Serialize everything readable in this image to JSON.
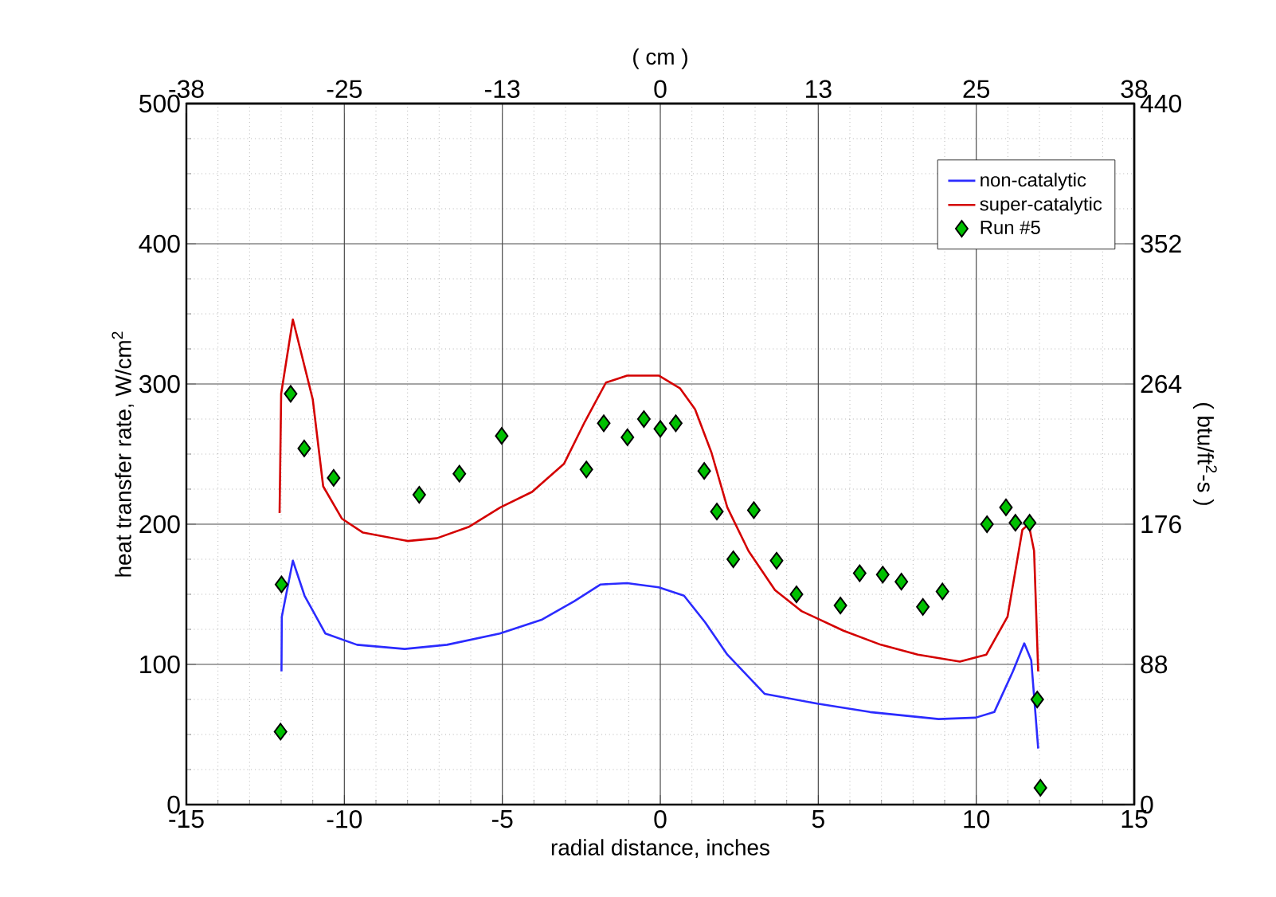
{
  "chart_data": {
    "type": "line",
    "xlabel": "radial distance, inches",
    "ylabel": "heat transfer rate, W/cm$^{2}$",
    "y2label": "( btu/ft$^{2}$-s )",
    "x2label": "( cm )",
    "xlim": [
      -15,
      15
    ],
    "xticks": [
      -15,
      -10,
      -5,
      0,
      5,
      10,
      15
    ],
    "ylim": [
      0,
      500
    ],
    "yticks": [
      0,
      100,
      200,
      300,
      400,
      500
    ],
    "x2lim": [
      -38.1,
      38.1
    ],
    "x2ticks": [
      {
        "value": -38.1,
        "label": "-38"
      },
      {
        "value": -25.4,
        "label": "-25"
      },
      {
        "value": -12.7,
        "label": "-13"
      },
      {
        "value": 0,
        "label": "0"
      },
      {
        "value": 12.7,
        "label": "13"
      },
      {
        "value": 25.4,
        "label": "25"
      },
      {
        "value": 38.1,
        "label": "38"
      }
    ],
    "y2lim": [
      0,
      440
    ],
    "y2ticks": [
      0,
      88,
      176,
      264,
      352,
      440
    ],
    "grid": true,
    "legend": "top right",
    "line_style": "solid",
    "series": [
      {
        "name": "non-catalytic",
        "color": "#2b2bff",
        "marker": "none",
        "x": [
          -11.99,
          -11.98,
          -11.63,
          -11.26,
          -10.6,
          -9.6,
          -8.09,
          -6.75,
          -5.08,
          -3.74,
          -2.73,
          -1.89,
          -1.05,
          -0.05,
          0.75,
          1.42,
          2.12,
          3.3,
          4.97,
          6.64,
          8.81,
          9.98,
          10.57,
          11.16,
          11.52,
          11.74,
          11.96
        ],
        "values": [
          95,
          134,
          174,
          149,
          122,
          114,
          111,
          114,
          122,
          132,
          145,
          157,
          158,
          155,
          149,
          130,
          107,
          79,
          72,
          66,
          61,
          62,
          66,
          95,
          115,
          103,
          40
        ]
      },
      {
        "name": "super-catalytic",
        "color": "#d40000",
        "marker": "none",
        "x": [
          -12.05,
          -12.0,
          -11.63,
          -11.0,
          -10.67,
          -10.08,
          -9.41,
          -7.99,
          -7.07,
          -6.07,
          -5.06,
          -4.06,
          -3.05,
          -2.39,
          -1.72,
          -1.05,
          -0.05,
          0.62,
          1.1,
          1.62,
          2.12,
          2.79,
          3.63,
          4.47,
          5.8,
          6.98,
          8.15,
          9.48,
          10.32,
          10.99,
          11.46,
          11.66,
          11.83,
          11.96
        ],
        "values": [
          208,
          293,
          346,
          289,
          227,
          204,
          194,
          188,
          190,
          198,
          212,
          223,
          243,
          273,
          301,
          306,
          306,
          297,
          282,
          251,
          212,
          181,
          153,
          138,
          124,
          114,
          107,
          102,
          107,
          134,
          196,
          200,
          181,
          95
        ]
      },
      {
        "name": "Run #5",
        "color": "#00c000",
        "type": "scatter",
        "marker": "diamond",
        "x": [
          -12.02,
          -11.99,
          -11.7,
          -11.27,
          -10.34,
          -7.63,
          -6.36,
          -5.02,
          -2.34,
          -1.79,
          -1.04,
          -0.52,
          0,
          0.49,
          1.39,
          1.79,
          2.31,
          2.96,
          3.68,
          4.31,
          5.7,
          6.31,
          7.04,
          7.63,
          8.31,
          8.93,
          10.34,
          10.94,
          11.24,
          11.69,
          11.93,
          12.03
        ],
        "values": [
          52,
          157,
          293,
          254,
          233,
          221,
          236,
          263,
          239,
          272,
          262,
          275,
          268,
          272,
          238,
          209,
          175,
          210,
          174,
          150,
          142,
          165,
          164,
          159,
          141,
          152,
          200,
          212,
          201,
          201,
          75,
          12
        ]
      }
    ]
  }
}
